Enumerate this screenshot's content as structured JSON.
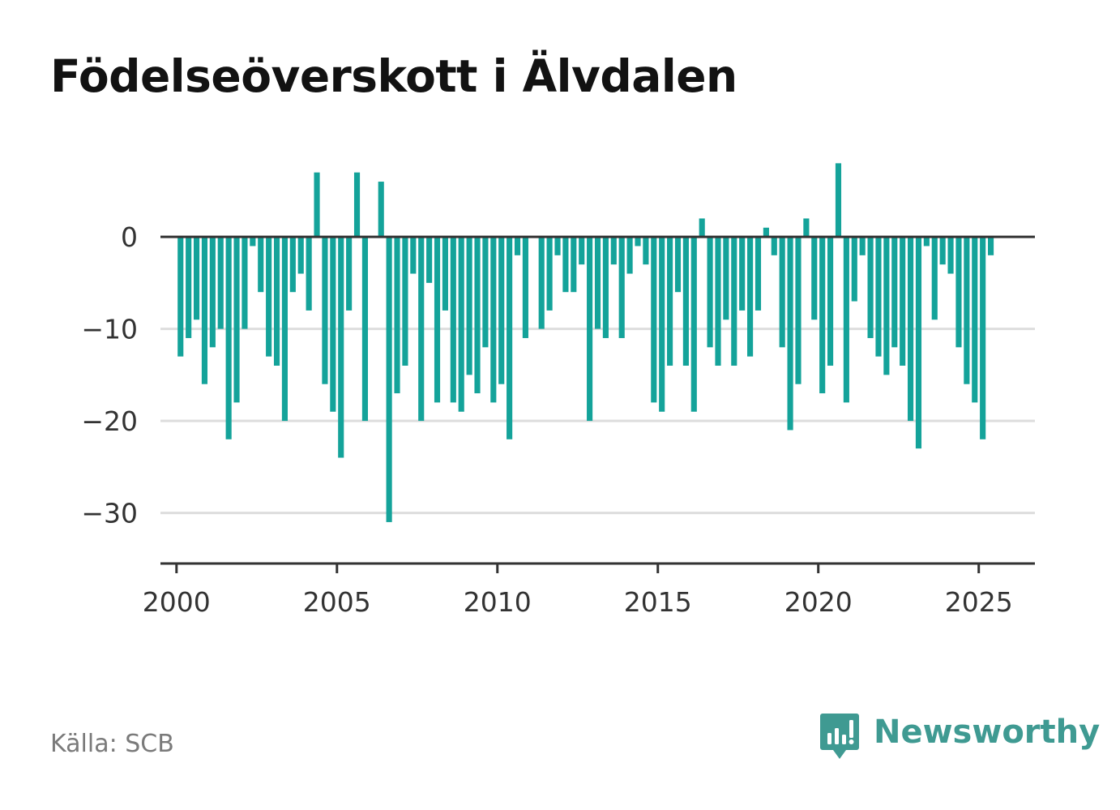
{
  "title": "Födelseöverskott i Älvdalen",
  "source": "Källa: SCB",
  "brand": {
    "name": "Newsworthy",
    "icon": "newsworthy-chart-bubble-icon",
    "color": "#3f9a92"
  },
  "colors": {
    "bar": "#14a39a",
    "axis": "#333333",
    "grid": "#dddddd"
  },
  "chart_data": {
    "type": "bar",
    "title": "Födelseöverskott i Älvdalen",
    "xlabel": "",
    "ylabel": "",
    "frequency": "quarterly",
    "ylim": [
      -35.5,
      9
    ],
    "xlim": [
      "1999-Q3",
      "2026-Q4"
    ],
    "yticks": [
      0,
      -10,
      -20,
      -30
    ],
    "ytick_labels": [
      "0",
      "−10",
      "−20",
      "−30"
    ],
    "xticks": [
      "2000",
      "2005",
      "2010",
      "2015",
      "2020",
      "2025"
    ],
    "grid": true,
    "x": [
      "2000-Q1",
      "2000-Q2",
      "2000-Q3",
      "2000-Q4",
      "2001-Q1",
      "2001-Q2",
      "2001-Q3",
      "2001-Q4",
      "2002-Q1",
      "2002-Q2",
      "2002-Q3",
      "2002-Q4",
      "2003-Q1",
      "2003-Q2",
      "2003-Q3",
      "2003-Q4",
      "2004-Q1",
      "2004-Q2",
      "2004-Q3",
      "2004-Q4",
      "2005-Q1",
      "2005-Q2",
      "2005-Q3",
      "2005-Q4",
      "2006-Q1",
      "2006-Q2",
      "2006-Q3",
      "2006-Q4",
      "2007-Q1",
      "2007-Q2",
      "2007-Q3",
      "2007-Q4",
      "2008-Q1",
      "2008-Q2",
      "2008-Q3",
      "2008-Q4",
      "2009-Q1",
      "2009-Q2",
      "2009-Q3",
      "2009-Q4",
      "2010-Q1",
      "2010-Q2",
      "2010-Q3",
      "2010-Q4",
      "2011-Q1",
      "2011-Q2",
      "2011-Q3",
      "2011-Q4",
      "2012-Q1",
      "2012-Q2",
      "2012-Q3",
      "2012-Q4",
      "2013-Q1",
      "2013-Q2",
      "2013-Q3",
      "2013-Q4",
      "2014-Q1",
      "2014-Q2",
      "2014-Q3",
      "2014-Q4",
      "2015-Q1",
      "2015-Q2",
      "2015-Q3",
      "2015-Q4",
      "2016-Q1",
      "2016-Q2",
      "2016-Q3",
      "2016-Q4",
      "2017-Q1",
      "2017-Q2",
      "2017-Q3",
      "2017-Q4",
      "2018-Q1",
      "2018-Q2",
      "2018-Q3",
      "2018-Q4",
      "2019-Q1",
      "2019-Q2",
      "2019-Q3",
      "2019-Q4",
      "2020-Q1",
      "2020-Q2",
      "2020-Q3",
      "2020-Q4",
      "2021-Q1",
      "2021-Q2",
      "2021-Q3",
      "2021-Q4",
      "2022-Q1",
      "2022-Q2",
      "2022-Q3",
      "2022-Q4",
      "2023-Q1",
      "2023-Q2",
      "2023-Q3",
      "2023-Q4",
      "2024-Q1",
      "2024-Q2",
      "2024-Q3",
      "2024-Q4",
      "2025-Q1",
      "2025-Q2"
    ],
    "values": [
      -13,
      -11,
      -9,
      -16,
      -12,
      -10,
      -22,
      -18,
      -10,
      -1,
      -6,
      -13,
      -14,
      -20,
      -6,
      -4,
      -8,
      7,
      -16,
      -19,
      -24,
      -8,
      7,
      -20,
      0,
      6,
      -31,
      -17,
      -14,
      -4,
      -20,
      -5,
      -18,
      -8,
      -18,
      -19,
      -15,
      -17,
      -12,
      -18,
      -16,
      -22,
      -2,
      -11,
      0,
      -10,
      -8,
      -2,
      -6,
      -6,
      -3,
      -20,
      -10,
      -11,
      -3,
      -11,
      -4,
      -1,
      -3,
      -18,
      -19,
      -14,
      -6,
      -14,
      -19,
      2,
      -12,
      -14,
      -9,
      -14,
      -8,
      -13,
      -8,
      1,
      -2,
      -12,
      -21,
      -16,
      2,
      -9,
      -17,
      -14,
      8,
      -18,
      -7,
      -2,
      -11,
      -13,
      -15,
      -12,
      -14,
      -20,
      -23,
      -1,
      -9,
      -3,
      -4,
      -12,
      -16,
      -18,
      -22,
      -2
    ]
  }
}
